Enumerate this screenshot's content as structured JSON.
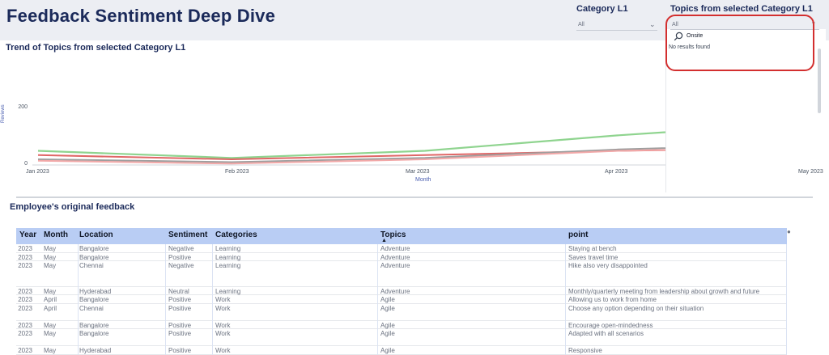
{
  "page": {
    "title": "Feedback Sentiment Deep Dive"
  },
  "slicers": {
    "category": {
      "title": "Category L1",
      "value": "All"
    },
    "topics": {
      "title": "Topics from selected Category L1",
      "value": "All",
      "search_text": "Onsite",
      "no_results": "No results found"
    }
  },
  "chart": {
    "title": "Trend of Topics from selected Category L1",
    "ylabel": "Reviews",
    "xlabel": "Month",
    "ticks_y": [
      "200",
      "0"
    ],
    "ticks_x": [
      "Jan 2023",
      "Feb 2023",
      "Mar 2023",
      "Apr 2023",
      "May 2023"
    ]
  },
  "chart_data": {
    "type": "line",
    "title": "Trend of Topics from selected Category L1",
    "xlabel": "Month",
    "ylabel": "Reviews",
    "x": [
      "Jan 2023",
      "Feb 2023",
      "Mar 2023",
      "Apr 2023",
      "May 2023"
    ],
    "ylim": [
      0,
      200
    ],
    "grid": false,
    "series": [
      {
        "color": "#8fd48f",
        "values": [
          50,
          25,
          50,
          105,
          150
        ]
      },
      {
        "color": "#e06666",
        "values": [
          35,
          20,
          35,
          50,
          60
        ]
      },
      {
        "color": "#9e9e9e",
        "values": [
          20,
          10,
          25,
          55,
          75
        ]
      },
      {
        "color": "#f2a8a8",
        "values": [
          15,
          5,
          20,
          50,
          65
        ]
      }
    ]
  },
  "table": {
    "title": "Employee's original feedback",
    "columns": [
      "Year",
      "Month",
      "Location",
      "Sentiment",
      "Categories",
      "Topics",
      "point"
    ],
    "rows": [
      [
        "2023",
        "May",
        "Bangalore",
        "Negative",
        "Learning",
        "Adventure",
        "Staying at bench"
      ],
      [
        "2023",
        "May",
        "Bangalore",
        "Positive",
        "Learning",
        "Adventure",
        "Saves travel time"
      ],
      [
        "2023",
        "May",
        "Chennai",
        "Negative",
        "Learning",
        "Adventure",
        "Hike also very disappointed"
      ],
      [
        "2023",
        "May",
        "Hyderabad",
        "Neutral",
        "Learning",
        "Adventure",
        "Monthly/quarterly meeting from leadership about growth and future"
      ],
      [
        "2023",
        "April",
        "Bangalore",
        "Positive",
        "Work",
        "Agile",
        "Allowing us to work from home"
      ],
      [
        "2023",
        "April",
        "Chennai",
        "Positive",
        "Work",
        "Agile",
        "Choose any option depending on their situation"
      ],
      [
        "2023",
        "May",
        "Bangalore",
        "Positive",
        "Work",
        "Agile",
        "Encourage open-mindedness"
      ],
      [
        "2023",
        "May",
        "Bangalore",
        "Positive",
        "Work",
        "Agile",
        "Adapted with all scenarios"
      ],
      [
        "2023",
        "May",
        "Hyderabad",
        "Positive",
        "Work",
        "Agile",
        "Responsive"
      ]
    ],
    "row_heights": [
      1,
      1,
      3,
      1,
      1,
      2,
      1,
      2,
      1
    ]
  }
}
